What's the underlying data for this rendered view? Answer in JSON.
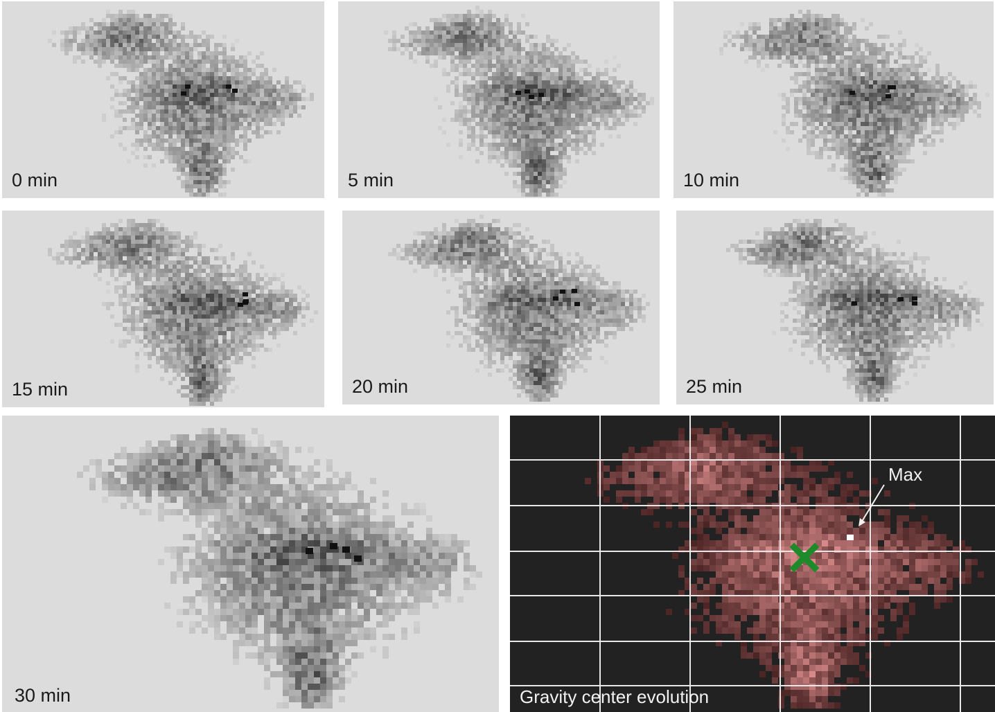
{
  "panels": [
    {
      "label": "0 min"
    },
    {
      "label": "5 min"
    },
    {
      "label": "10 min"
    },
    {
      "label": "15 min"
    },
    {
      "label": "20 min"
    },
    {
      "label": "25 min"
    },
    {
      "label": "30 min"
    }
  ],
  "gravity": {
    "title": "Gravity center evolution",
    "max_label": "Max",
    "marker_color": "#1e8a2a",
    "grid_color": "#e8e8e8"
  }
}
